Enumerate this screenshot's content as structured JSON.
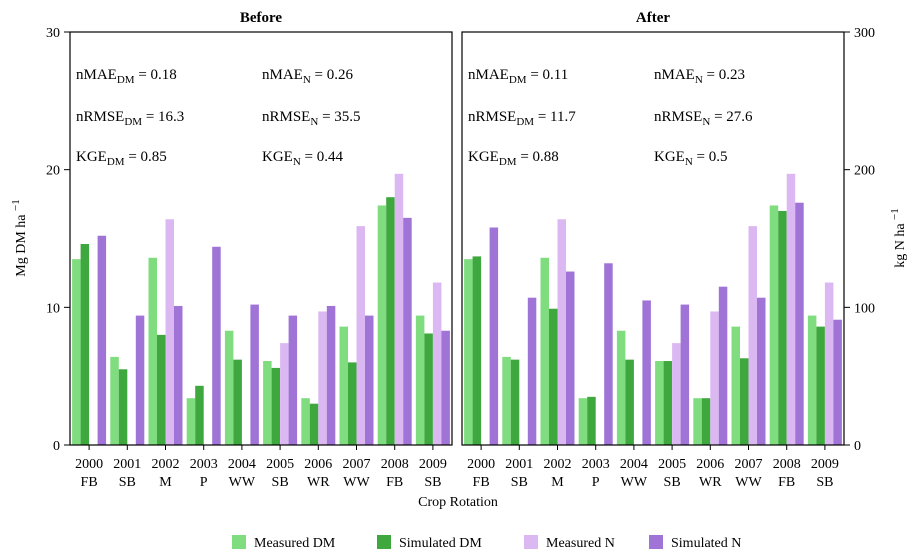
{
  "chart_data": {
    "type": "bar",
    "xlabel": "Crop Rotation",
    "ylabel_left": "Mg DM ha",
    "ylabel_left_sup": "−1",
    "ylabel_right": "kg N ha",
    "ylabel_right_sup": "−1",
    "ylim_left": [
      0,
      30
    ],
    "ylim_right": [
      0,
      300
    ],
    "yticks_left": [
      "0",
      "10",
      "20",
      "30"
    ],
    "yticks_right": [
      "0",
      "100",
      "200",
      "300"
    ],
    "years": [
      "2000",
      "2001",
      "2002",
      "2003",
      "2004",
      "2005",
      "2006",
      "2007",
      "2008",
      "2009"
    ],
    "crops": [
      "FB",
      "SB",
      "M",
      "P",
      "WW",
      "SB",
      "WR",
      "WW",
      "FB",
      "SB"
    ],
    "legend": [
      {
        "name": "Measured DM",
        "color": "#7fdc7f"
      },
      {
        "name": "Simulated DM",
        "color": "#3ea83e"
      },
      {
        "name": "Measured N",
        "color": "#dcb8f2"
      },
      {
        "name": "Simulated N",
        "color": "#a074d6"
      }
    ],
    "panels": [
      {
        "title": "Before",
        "stats": [
          {
            "base": "nMAE",
            "sub": "DM",
            "value": " = 0.18"
          },
          {
            "base": "nMAE",
            "sub": "N",
            "value": " = 0.26"
          },
          {
            "base": "nRMSE",
            "sub": "DM",
            "value": " = 16.3"
          },
          {
            "base": "nRMSE",
            "sub": "N",
            "value": " = 35.5"
          },
          {
            "base": "KGE",
            "sub": "DM",
            "value": " = 0.85"
          },
          {
            "base": "KGE",
            "sub": "N",
            "value": " = 0.44"
          }
        ],
        "series": [
          {
            "name": "Measured DM",
            "axis": "left",
            "values": [
              13.5,
              6.4,
              13.6,
              3.4,
              8.3,
              6.1,
              3.4,
              8.6,
              17.4,
              9.4
            ]
          },
          {
            "name": "Simulated DM",
            "axis": "left",
            "values": [
              14.6,
              5.5,
              8.0,
              4.3,
              6.2,
              5.6,
              3.0,
              6.0,
              18.0,
              8.1
            ]
          },
          {
            "name": "Measured N",
            "axis": "right",
            "values": [
              null,
              null,
              164,
              null,
              null,
              74,
              97,
              159,
              197,
              118
            ]
          },
          {
            "name": "Simulated N",
            "axis": "right",
            "values": [
              152,
              94,
              101,
              144,
              102,
              94,
              101,
              94,
              165,
              83
            ]
          }
        ]
      },
      {
        "title": "After",
        "stats": [
          {
            "base": "nMAE",
            "sub": "DM",
            "value": " = 0.11"
          },
          {
            "base": "nMAE",
            "sub": "N",
            "value": " = 0.23"
          },
          {
            "base": "nRMSE",
            "sub": "DM",
            "value": " = 11.7"
          },
          {
            "base": "nRMSE",
            "sub": "N",
            "value": " = 27.6"
          },
          {
            "base": "KGE",
            "sub": "DM",
            "value": " = 0.88"
          },
          {
            "base": "KGE",
            "sub": "N",
            "value": " = 0.5"
          }
        ],
        "series": [
          {
            "name": "Measured DM",
            "axis": "left",
            "values": [
              13.5,
              6.4,
              13.6,
              3.4,
              8.3,
              6.1,
              3.4,
              8.6,
              17.4,
              9.4
            ]
          },
          {
            "name": "Simulated DM",
            "axis": "left",
            "values": [
              13.7,
              6.2,
              9.9,
              3.5,
              6.2,
              6.1,
              3.4,
              6.3,
              17.0,
              8.6
            ]
          },
          {
            "name": "Measured N",
            "axis": "right",
            "values": [
              null,
              null,
              164,
              null,
              null,
              74,
              97,
              159,
              197,
              118
            ]
          },
          {
            "name": "Simulated N",
            "axis": "right",
            "values": [
              158,
              107,
              126,
              132,
              105,
              102,
              115,
              107,
              176,
              91
            ]
          }
        ]
      }
    ]
  }
}
